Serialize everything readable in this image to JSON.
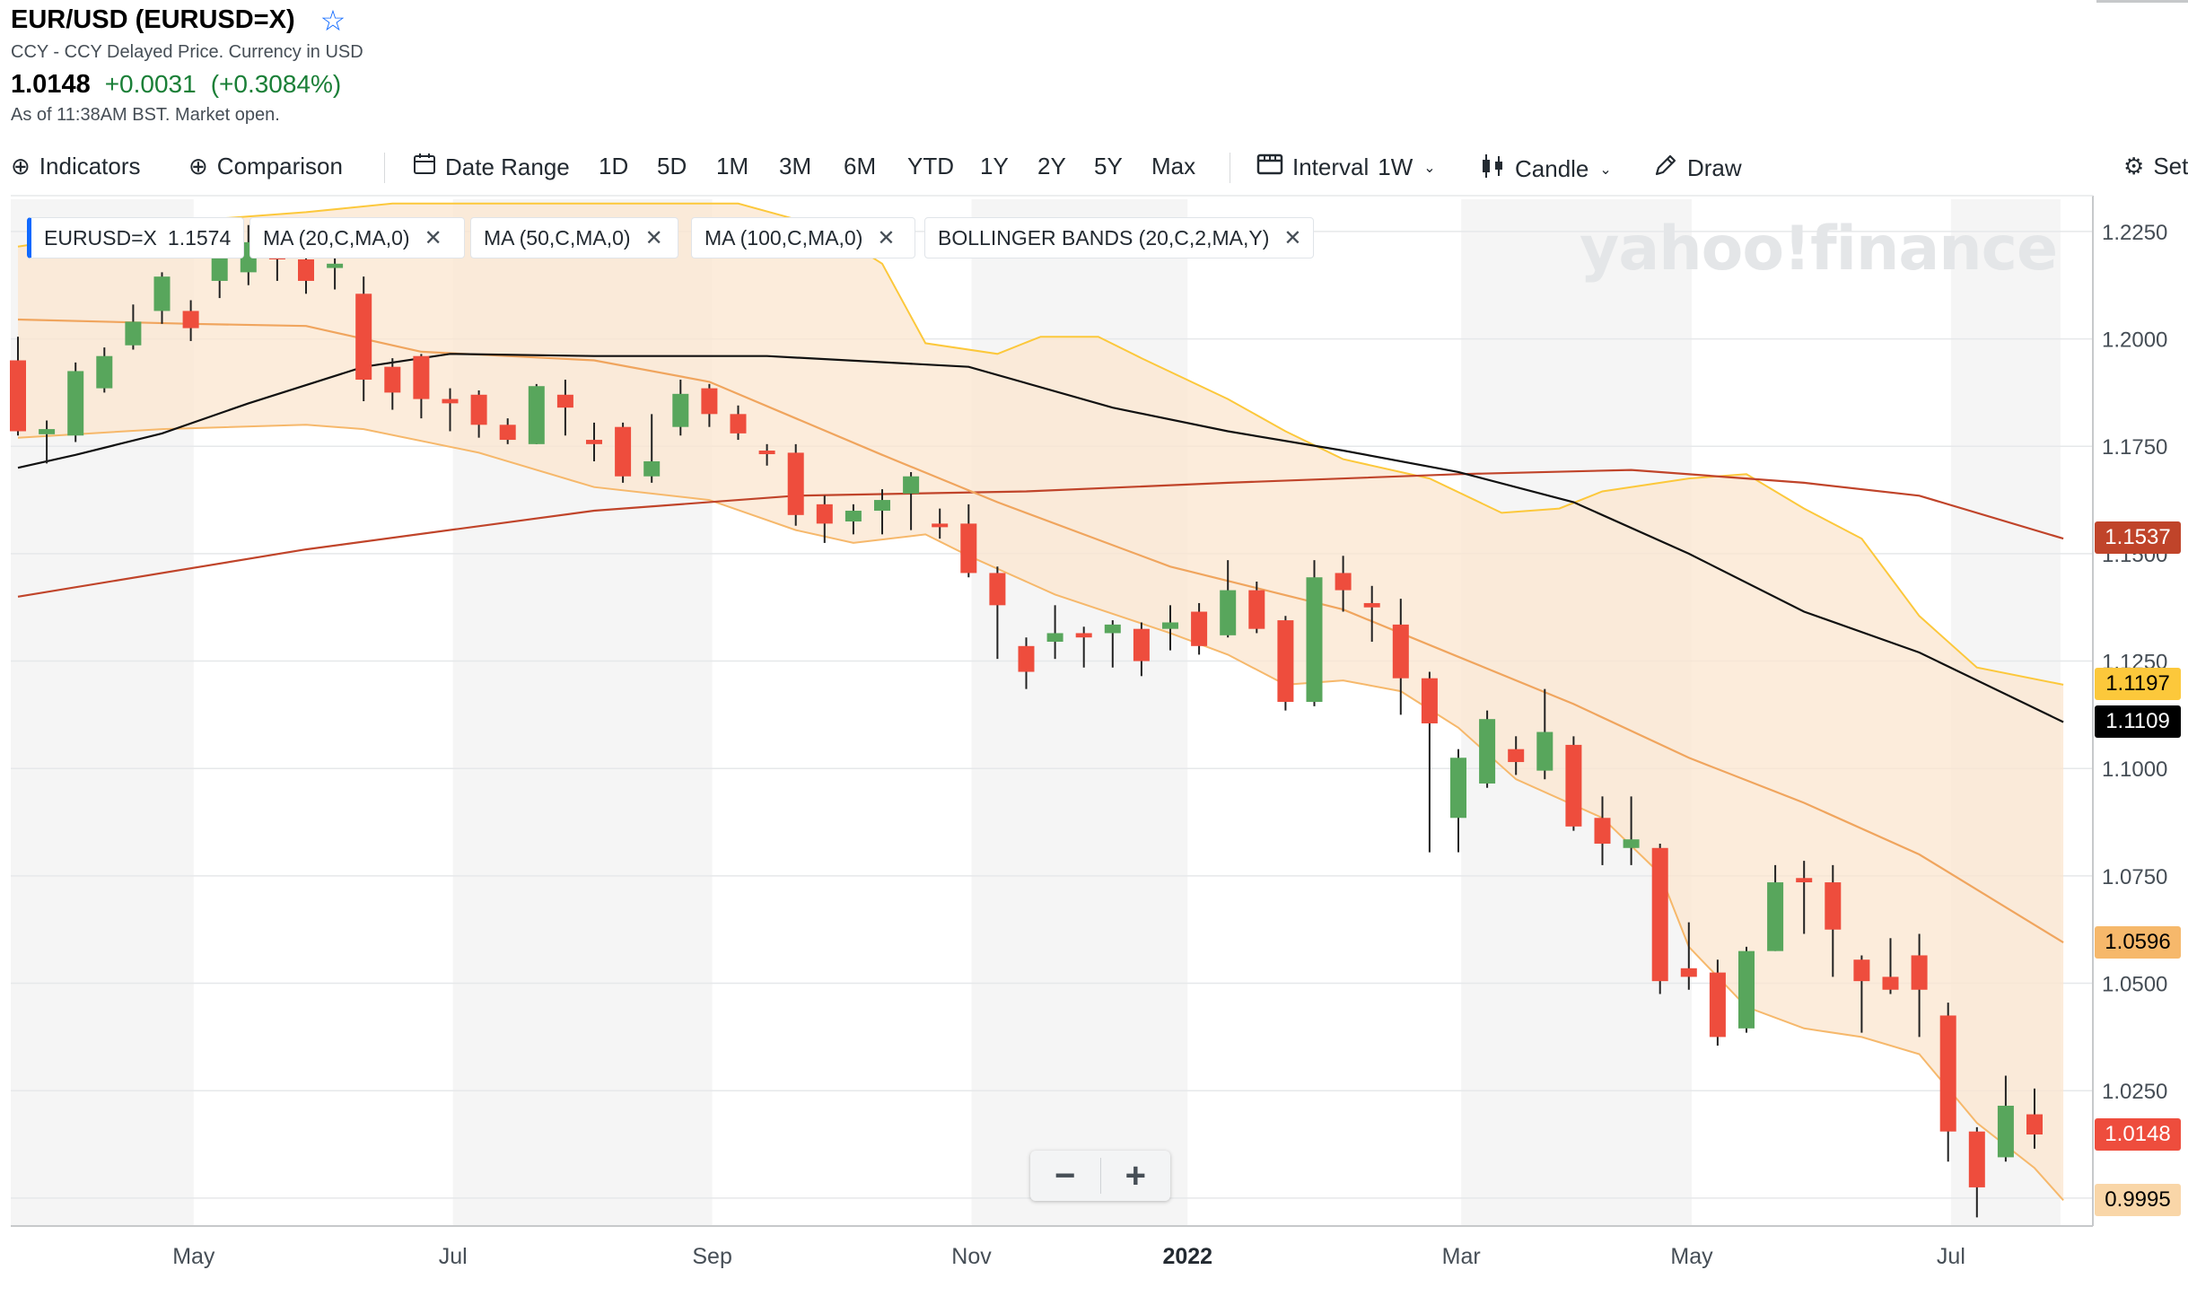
{
  "header": {
    "title": "EUR/USD (EURUSD=X)",
    "star_icon": "star-outline-icon",
    "subtitle": "CCY - CCY Delayed Price. Currency in USD",
    "price": "1.0148",
    "change": "+0.0031",
    "change_pct": "(+0.3084%)",
    "as_of": "As of 11:38AM BST. Market open."
  },
  "toolbar": {
    "indicators": "Indicators",
    "comparison": "Comparison",
    "date_range": "Date Range",
    "ranges": [
      "1D",
      "5D",
      "1M",
      "3M",
      "6M",
      "YTD",
      "1Y",
      "2Y",
      "5Y",
      "Max"
    ],
    "interval_label": "Interval",
    "interval_value": "1W",
    "chart_type": "Candle",
    "draw": "Draw",
    "settings": "Set"
  },
  "legend_pills": [
    {
      "label": "EURUSD=X",
      "value": "1.1574"
    },
    {
      "label": "MA (20,C,MA,0)"
    },
    {
      "label": "MA (50,C,MA,0)"
    },
    {
      "label": "MA (100,C,MA,0)"
    },
    {
      "label": "BOLLINGER BANDS (20,C,2,MA,Y)"
    }
  ],
  "watermark": "yahoo!finance",
  "zoom": {
    "minus": "−",
    "plus": "+"
  },
  "colors": {
    "up": "#58a65c",
    "down": "#ee4d3d",
    "ma20": "#f0a55e",
    "ma50": "#111111",
    "ma100": "#c0442a",
    "bb_upper": "#fcc83b",
    "bb_lower": "#f6b86b",
    "bb_fill": "#fbe6cf"
  },
  "chart_data": {
    "type": "candlestick",
    "interval": "1W",
    "y_range": [
      0.9935,
      1.2325
    ],
    "y_ticks": [
      1.225,
      1.2,
      1.175,
      1.15,
      1.125,
      1.1,
      1.075,
      1.05,
      1.025
    ],
    "y_tick_labels": [
      "1.2250",
      "1.2000",
      "1.1750",
      "1.1500",
      "1.1250",
      "1.1000",
      "1.0750",
      "1.0500",
      "1.0250"
    ],
    "x_labels": [
      {
        "label": "May",
        "week": 6.1,
        "bold": false
      },
      {
        "label": "Jul",
        "week": 15.1,
        "bold": false
      },
      {
        "label": "Sep",
        "week": 24.1,
        "bold": false
      },
      {
        "label": "Nov",
        "week": 33.1,
        "bold": false
      },
      {
        "label": "2022",
        "week": 40.6,
        "bold": true
      },
      {
        "label": "Mar",
        "week": 50.1,
        "bold": false
      },
      {
        "label": "May",
        "week": 58.1,
        "bold": false
      },
      {
        "label": "Jul",
        "week": 67.1,
        "bold": false
      }
    ],
    "shaded_bands": [
      [
        0.0,
        6.1
      ],
      [
        15.1,
        24.1
      ],
      [
        33.1,
        40.6
      ],
      [
        50.1,
        58.1
      ],
      [
        67.1,
        70.9
      ]
    ],
    "candles": [
      [
        1.195,
        1.1785,
        1.2005,
        1.1775
      ],
      [
        1.1778,
        1.179,
        1.181,
        1.171
      ],
      [
        1.1775,
        1.1925,
        1.1945,
        1.176
      ],
      [
        1.1885,
        1.196,
        1.198,
        1.1875
      ],
      [
        1.1985,
        1.204,
        1.208,
        1.1975
      ],
      [
        1.2065,
        1.2145,
        1.2155,
        1.2035
      ],
      [
        1.2065,
        1.2025,
        1.209,
        1.1995
      ],
      [
        1.2135,
        1.2215,
        1.2225,
        1.2095
      ],
      [
        1.2155,
        1.2225,
        1.2265,
        1.2125
      ],
      [
        1.2195,
        1.2185,
        1.2265,
        1.2135
      ],
      [
        1.2185,
        1.2135,
        1.2265,
        1.2105
      ],
      [
        1.2165,
        1.2175,
        1.2215,
        1.2115
      ],
      [
        1.2105,
        1.1905,
        1.2145,
        1.1855
      ],
      [
        1.1935,
        1.1875,
        1.1955,
        1.1835
      ],
      [
        1.196,
        1.186,
        1.1965,
        1.1815
      ],
      [
        1.186,
        1.185,
        1.1885,
        1.1785
      ],
      [
        1.187,
        1.18,
        1.188,
        1.177
      ],
      [
        1.18,
        1.1765,
        1.1815,
        1.1755
      ],
      [
        1.1755,
        1.189,
        1.1895,
        1.1755
      ],
      [
        1.187,
        1.184,
        1.1905,
        1.1775
      ],
      [
        1.1765,
        1.1755,
        1.1805,
        1.1715
      ],
      [
        1.1795,
        1.168,
        1.1805,
        1.1665
      ],
      [
        1.168,
        1.1715,
        1.1825,
        1.1665
      ],
      [
        1.1795,
        1.1872,
        1.1905,
        1.1775
      ],
      [
        1.1885,
        1.1825,
        1.1895,
        1.1795
      ],
      [
        1.1825,
        1.178,
        1.1845,
        1.1765
      ],
      [
        1.174,
        1.1735,
        1.1755,
        1.1705
      ],
      [
        1.1735,
        1.159,
        1.1755,
        1.1565
      ],
      [
        1.1615,
        1.157,
        1.1635,
        1.1525
      ],
      [
        1.1575,
        1.16,
        1.1615,
        1.1545
      ],
      [
        1.16,
        1.1625,
        1.165,
        1.1545
      ],
      [
        1.164,
        1.168,
        1.169,
        1.1555
      ],
      [
        1.157,
        1.1565,
        1.1605,
        1.1535
      ],
      [
        1.157,
        1.1455,
        1.1615,
        1.1445
      ],
      [
        1.1455,
        1.138,
        1.147,
        1.1255
      ],
      [
        1.1285,
        1.1225,
        1.1305,
        1.1185
      ],
      [
        1.1295,
        1.1315,
        1.138,
        1.1255
      ],
      [
        1.1315,
        1.1305,
        1.133,
        1.1235
      ],
      [
        1.1315,
        1.1335,
        1.1345,
        1.1235
      ],
      [
        1.1325,
        1.125,
        1.134,
        1.1215
      ],
      [
        1.1325,
        1.134,
        1.138,
        1.1275
      ],
      [
        1.1365,
        1.1285,
        1.1385,
        1.1265
      ],
      [
        1.131,
        1.1415,
        1.1485,
        1.1305
      ],
      [
        1.1415,
        1.1325,
        1.1435,
        1.1315
      ],
      [
        1.1345,
        1.1155,
        1.1355,
        1.1135
      ],
      [
        1.1155,
        1.1445,
        1.1485,
        1.1145
      ],
      [
        1.1455,
        1.1415,
        1.1495,
        1.1365
      ],
      [
        1.1385,
        1.1375,
        1.1425,
        1.1295
      ],
      [
        1.1335,
        1.121,
        1.1395,
        1.1125
      ],
      [
        1.121,
        1.1105,
        1.1225,
        1.0805
      ],
      [
        1.0885,
        1.1025,
        1.1045,
        1.0805
      ],
      [
        1.0965,
        1.1115,
        1.1135,
        1.0955
      ],
      [
        1.1045,
        1.1015,
        1.1075,
        1.0985
      ],
      [
        1.0995,
        1.1085,
        1.1185,
        1.0975
      ],
      [
        1.1055,
        1.0865,
        1.1075,
        1.0855
      ],
      [
        1.0885,
        1.0825,
        1.0935,
        1.0775
      ],
      [
        1.0815,
        1.0835,
        1.0935,
        1.0775
      ],
      [
        1.0815,
        1.0505,
        1.0825,
        1.0475
      ],
      [
        1.0535,
        1.0515,
        1.0642,
        1.0485
      ],
      [
        1.0525,
        1.0375,
        1.0555,
        1.0355
      ],
      [
        1.0395,
        1.0575,
        1.0585,
        1.0385
      ],
      [
        1.0575,
        1.0735,
        1.0775,
        1.0575
      ],
      [
        1.0745,
        1.0735,
        1.0785,
        1.0615
      ],
      [
        1.0735,
        1.0625,
        1.0775,
        1.0515
      ],
      [
        1.0555,
        1.0505,
        1.0565,
        1.0385
      ],
      [
        1.0515,
        1.0485,
        1.0605,
        1.0475
      ],
      [
        1.0565,
        1.0485,
        1.0615,
        1.0375
      ],
      [
        1.0425,
        1.0155,
        1.0455,
        1.0085
      ],
      [
        1.0155,
        1.0025,
        1.0165,
        0.9955
      ],
      [
        1.0095,
        1.0215,
        1.0285,
        1.0085
      ],
      [
        1.0195,
        1.0148,
        1.0255,
        1.0115
      ]
    ],
    "candle_fields": [
      "open",
      "close",
      "high",
      "low"
    ],
    "ma20": [
      [
        0,
        1.2045
      ],
      [
        6,
        1.2035
      ],
      [
        10,
        1.203
      ],
      [
        14,
        1.197
      ],
      [
        20,
        1.195
      ],
      [
        24,
        1.19
      ],
      [
        30,
        1.173
      ],
      [
        34,
        1.162
      ],
      [
        40,
        1.147
      ],
      [
        46,
        1.137
      ],
      [
        50,
        1.126
      ],
      [
        54,
        1.115
      ],
      [
        58,
        1.1025
      ],
      [
        62,
        1.092
      ],
      [
        66,
        1.08
      ],
      [
        71,
        1.0595
      ]
    ],
    "ma50": [
      [
        0,
        1.17
      ],
      [
        2,
        1.173
      ],
      [
        5,
        1.178
      ],
      [
        8,
        1.185
      ],
      [
        12,
        1.1935
      ],
      [
        15,
        1.1965
      ],
      [
        20,
        1.196
      ],
      [
        26,
        1.196
      ],
      [
        33,
        1.1935
      ],
      [
        38,
        1.184
      ],
      [
        42,
        1.1785
      ],
      [
        46,
        1.174
      ],
      [
        50,
        1.169
      ],
      [
        54,
        1.162
      ],
      [
        58,
        1.15
      ],
      [
        62,
        1.1365
      ],
      [
        66,
        1.127
      ],
      [
        71,
        1.1108
      ]
    ],
    "ma100": [
      [
        0,
        1.14
      ],
      [
        10,
        1.151
      ],
      [
        20,
        1.16
      ],
      [
        27,
        1.1635
      ],
      [
        35,
        1.1645
      ],
      [
        42,
        1.1665
      ],
      [
        50,
        1.1685
      ],
      [
        56,
        1.1695
      ],
      [
        62,
        1.1665
      ],
      [
        66,
        1.1635
      ],
      [
        71,
        1.1535
      ]
    ],
    "bb_upper": [
      [
        0,
        1.2215
      ],
      [
        6,
        1.2275
      ],
      [
        10,
        1.2295
      ],
      [
        13,
        1.2315
      ],
      [
        25,
        1.2315
      ],
      [
        28,
        1.226
      ],
      [
        30,
        1.2175
      ],
      [
        31.5,
        1.199
      ],
      [
        34,
        1.1965
      ],
      [
        35.5,
        1.2005
      ],
      [
        37.5,
        1.2005
      ],
      [
        39,
        1.1955
      ],
      [
        42,
        1.186
      ],
      [
        44,
        1.1785
      ],
      [
        46,
        1.172
      ],
      [
        49,
        1.1675
      ],
      [
        51.5,
        1.1595
      ],
      [
        53.5,
        1.1605
      ],
      [
        55,
        1.1645
      ],
      [
        58,
        1.1675
      ],
      [
        60,
        1.1685
      ],
      [
        62,
        1.1605
      ],
      [
        64,
        1.1535
      ],
      [
        66,
        1.1355
      ],
      [
        68,
        1.1235
      ],
      [
        71,
        1.1195
      ]
    ],
    "bb_lower": [
      [
        0,
        1.177
      ],
      [
        5,
        1.179
      ],
      [
        10,
        1.18
      ],
      [
        12,
        1.179
      ],
      [
        16,
        1.1735
      ],
      [
        20,
        1.1655
      ],
      [
        24,
        1.1625
      ],
      [
        27,
        1.1555
      ],
      [
        29,
        1.1525
      ],
      [
        31.5,
        1.1545
      ],
      [
        33,
        1.1495
      ],
      [
        36,
        1.1405
      ],
      [
        40,
        1.1315
      ],
      [
        42,
        1.1265
      ],
      [
        44,
        1.1195
      ],
      [
        46,
        1.1205
      ],
      [
        48,
        1.118
      ],
      [
        50,
        1.1095
      ],
      [
        52,
        1.0975
      ],
      [
        55,
        1.0885
      ],
      [
        57,
        1.0755
      ],
      [
        58,
        1.0585
      ],
      [
        60,
        1.0445
      ],
      [
        62,
        1.0395
      ],
      [
        64,
        1.0375
      ],
      [
        66,
        1.0335
      ],
      [
        68,
        1.0175
      ],
      [
        70,
        1.007
      ],
      [
        71,
        0.9995
      ]
    ],
    "price_tags": [
      {
        "value": 1.1537,
        "label": "1.1537",
        "bg": "#c0442a",
        "fg": "#ffffff"
      },
      {
        "value": 1.1197,
        "label": "1.1197",
        "bg": "#fcc83b",
        "fg": "#000000"
      },
      {
        "value": 1.1109,
        "label": "1.1109",
        "bg": "#000000",
        "fg": "#ffffff"
      },
      {
        "value": 1.0596,
        "label": "1.0596",
        "bg": "#f6b86b",
        "fg": "#000000"
      },
      {
        "value": 1.0148,
        "label": "1.0148",
        "bg": "#ee4d3d",
        "fg": "#ffffff"
      },
      {
        "value": 0.9995,
        "label": "0.9995",
        "bg": "#f9d6a8",
        "fg": "#000000"
      }
    ]
  }
}
